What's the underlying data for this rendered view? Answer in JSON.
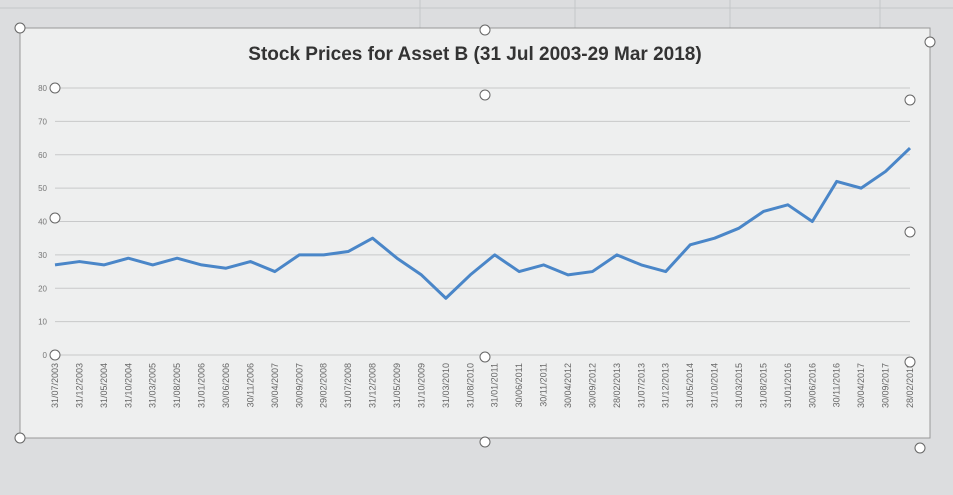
{
  "chart_data": {
    "type": "line",
    "title": "Stock Prices for Asset B (31 Jul 2003-29 Mar 2018)",
    "categories": [
      "31/07/2003",
      "31/12/2003",
      "31/05/2004",
      "31/10/2004",
      "31/03/2005",
      "31/08/2005",
      "31/01/2006",
      "30/06/2006",
      "30/11/2006",
      "30/04/2007",
      "30/09/2007",
      "29/02/2008",
      "31/07/2008",
      "31/12/2008",
      "31/05/2009",
      "31/10/2009",
      "31/03/2010",
      "31/08/2010",
      "31/01/2011",
      "30/06/2011",
      "30/11/2011",
      "30/04/2012",
      "30/09/2012",
      "28/02/2013",
      "31/07/2013",
      "31/12/2013",
      "31/05/2014",
      "31/10/2014",
      "31/03/2015",
      "31/08/2015",
      "31/01/2016",
      "30/06/2016",
      "30/11/2016",
      "30/04/2017",
      "30/09/2017",
      "28/02/2018"
    ],
    "values": [
      27,
      28,
      27,
      29,
      27,
      29,
      27,
      26,
      28,
      25,
      30,
      30,
      31,
      35,
      29,
      24,
      17,
      24,
      30,
      25,
      27,
      24,
      25,
      30,
      27,
      25,
      33,
      35,
      38,
      43,
      45,
      40,
      52,
      50,
      55,
      62
    ],
    "color": "#4a86c8",
    "ylim": [
      0,
      80
    ],
    "yticks": [
      0,
      10,
      20,
      30,
      40,
      50,
      60,
      70,
      80
    ],
    "grid": true
  }
}
